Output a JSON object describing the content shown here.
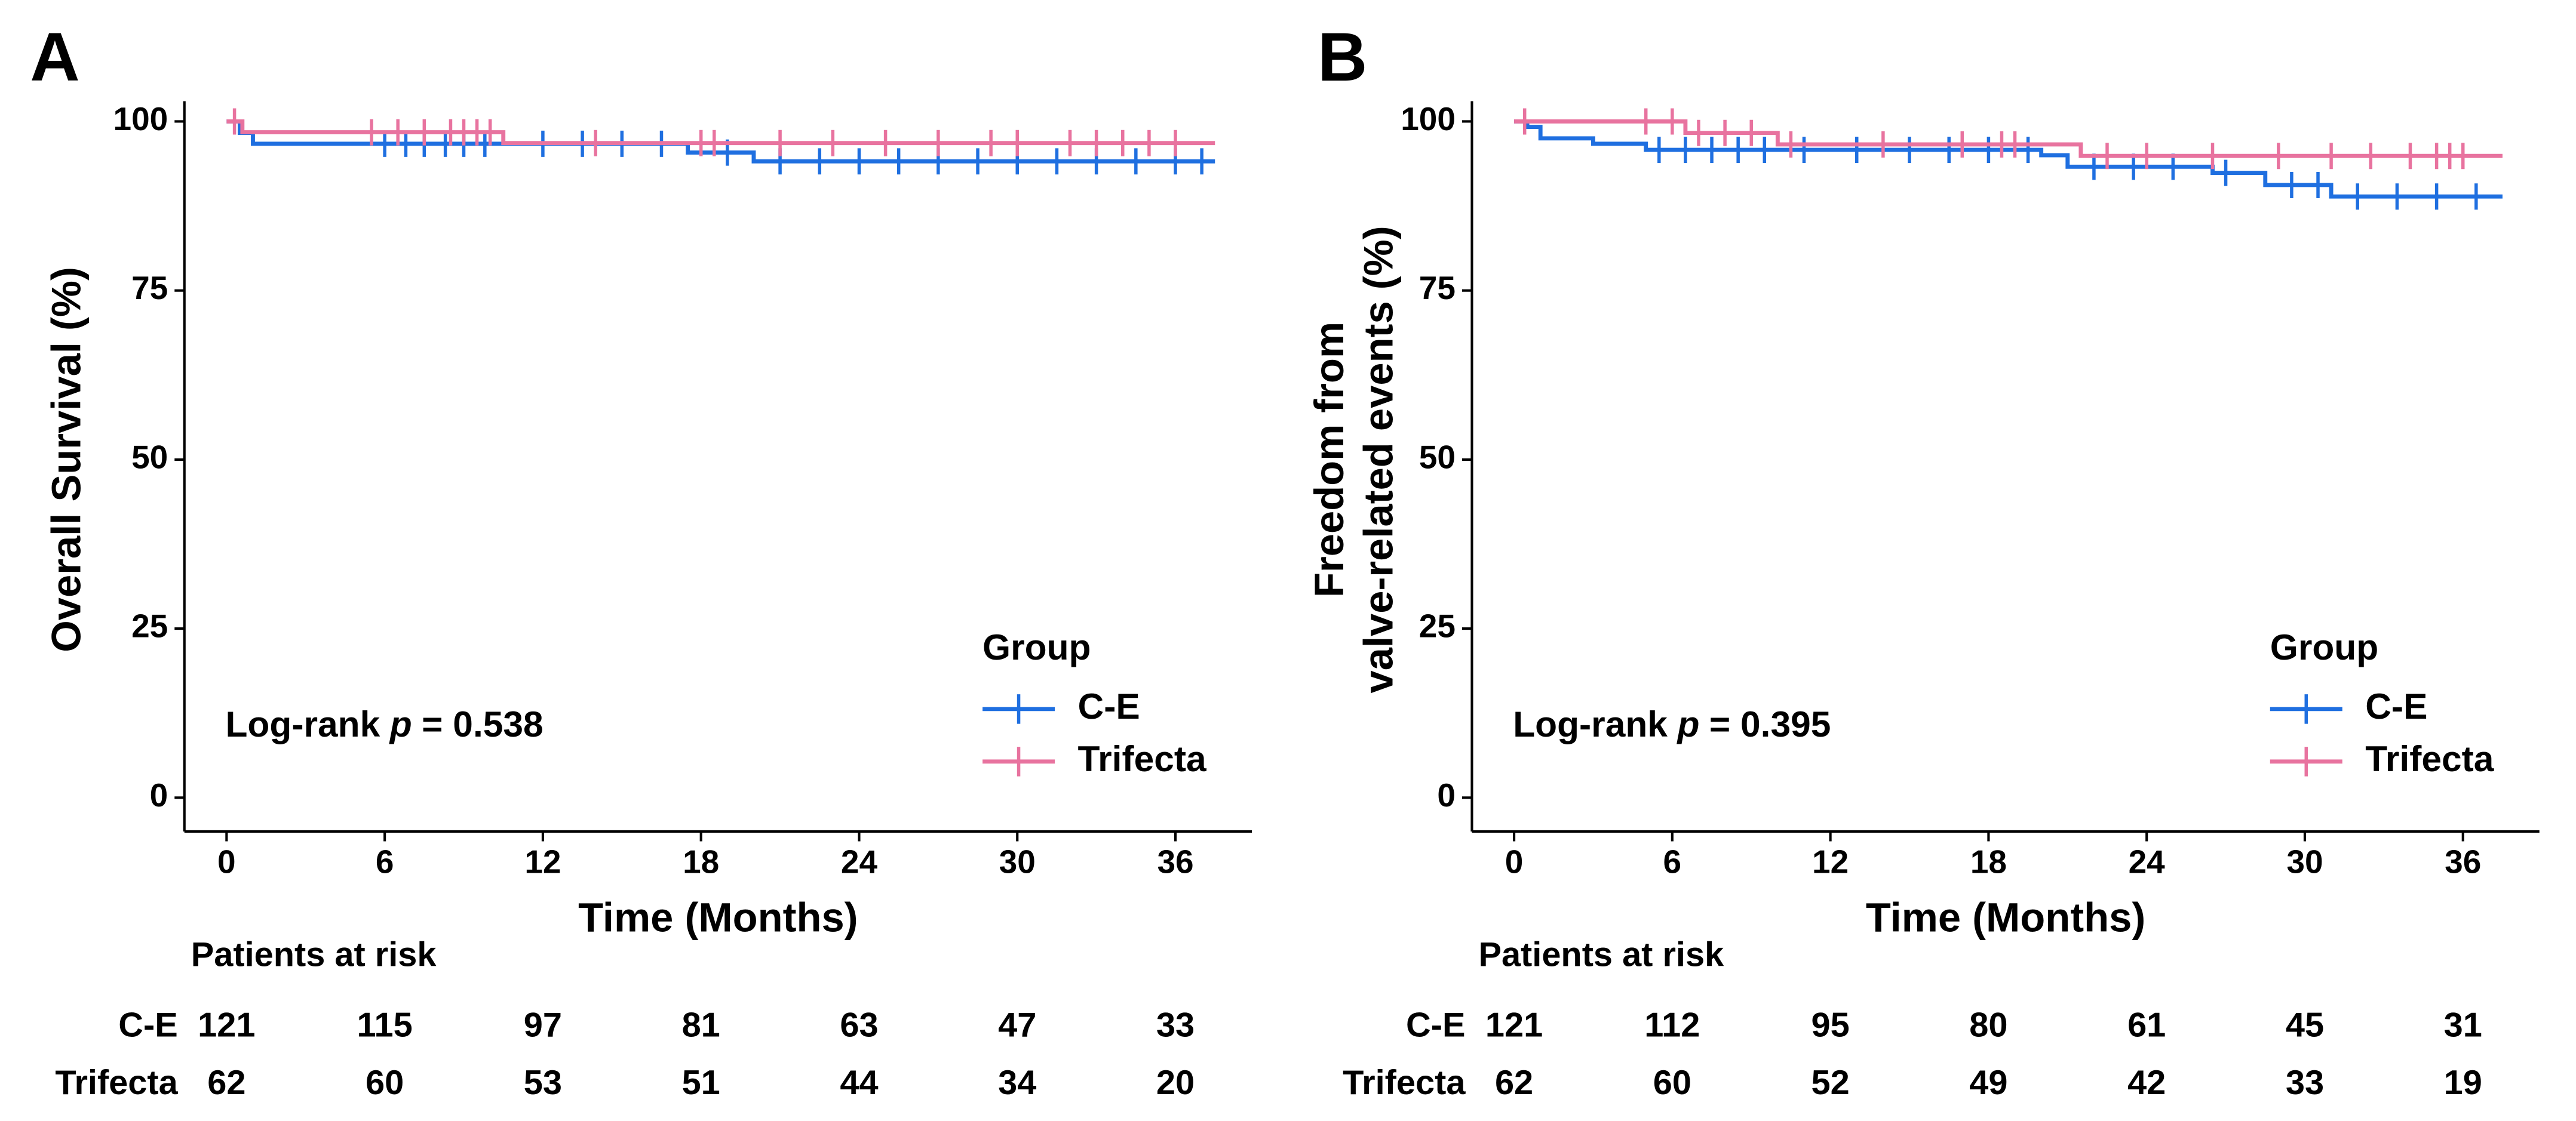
{
  "chart_data": [
    {
      "type": "step",
      "panel": "A",
      "ylabel": [
        "Overall Survival (%)"
      ],
      "xlabel": "Time (Months)",
      "xlim": [
        -1.6,
        38.9
      ],
      "ylim": [
        -5,
        103
      ],
      "xticks": [
        0,
        6,
        12,
        18,
        24,
        30,
        36
      ],
      "yticks": [
        0,
        25,
        50,
        75,
        100
      ],
      "legend_title": "Group",
      "legend": "lower right",
      "annotation": {
        "prefix": "Log-rank",
        "italic": "p",
        "suffix": "= 0.538"
      },
      "series": [
        {
          "name": "C-E",
          "color": "#1f6fe0",
          "x": [
            0,
            0.5,
            1,
            17.5,
            20,
            37.5
          ],
          "values": [
            100,
            98.3,
            96.7,
            95.4,
            94.1,
            94.1
          ],
          "censored": [
            6,
            6.8,
            7.5,
            8.3,
            9,
            9.8,
            12,
            13.5,
            15,
            16.5,
            19,
            21,
            22.5,
            24,
            25.5,
            27,
            28.5,
            30,
            31.5,
            33,
            34.5,
            36,
            37
          ]
        },
        {
          "name": "Trifecta",
          "color": "#e8739f",
          "x": [
            0,
            0.6,
            10.5,
            37.5
          ],
          "values": [
            100,
            98.4,
            96.8,
            96.8
          ],
          "censored": [
            0.3,
            5.5,
            6.5,
            7.5,
            8.5,
            9,
            9.5,
            10,
            14,
            18,
            18.5,
            21,
            23,
            25,
            27,
            29,
            30,
            32,
            33,
            34,
            35,
            36
          ]
        }
      ],
      "risk_table": {
        "title": "Patients at risk",
        "rows": [
          {
            "name": "C-E",
            "values": [
              121,
              115,
              97,
              81,
              63,
              47,
              33
            ]
          },
          {
            "name": "Trifecta",
            "values": [
              62,
              60,
              53,
              51,
              44,
              34,
              20
            ]
          }
        ]
      }
    },
    {
      "type": "step",
      "panel": "B",
      "ylabel": [
        "Freedom from",
        "valve-related events (%)"
      ],
      "xlabel": "Time (Months)",
      "xlim": [
        -1.6,
        38.9
      ],
      "ylim": [
        -5,
        103
      ],
      "xticks": [
        0,
        6,
        12,
        18,
        24,
        30,
        36
      ],
      "yticks": [
        0,
        25,
        50,
        75,
        100
      ],
      "legend_title": "Group",
      "legend": "lower right",
      "annotation": {
        "prefix": "Log-rank",
        "italic": "p",
        "suffix": "= 0.395"
      },
      "series": [
        {
          "name": "C-E",
          "color": "#1f6fe0",
          "x": [
            0,
            0.5,
            1,
            3,
            5,
            20,
            21,
            26.5,
            28.5,
            31,
            37.5
          ],
          "values": [
            100,
            99.2,
            97.5,
            96.7,
            95.8,
            95,
            93.3,
            92.4,
            90.6,
            88.9,
            88.9
          ],
          "censored": [
            5.5,
            6.5,
            7.5,
            8.5,
            9.5,
            11,
            13,
            15,
            16.5,
            18,
            19.5,
            22,
            23.5,
            25,
            27,
            29.5,
            30.5,
            32,
            33.5,
            35,
            36.5
          ]
        },
        {
          "name": "Trifecta",
          "color": "#e8739f",
          "x": [
            0,
            6.5,
            10,
            21.5,
            37.5
          ],
          "values": [
            100,
            98.3,
            96.6,
            94.9,
            94.9
          ],
          "censored": [
            0.4,
            5,
            6,
            7,
            8,
            9,
            10.5,
            14,
            17,
            18.5,
            19,
            22.5,
            24,
            26.5,
            29,
            31,
            32.5,
            34,
            35,
            35.5,
            36
          ]
        }
      ],
      "risk_table": {
        "title": "Patients at risk",
        "rows": [
          {
            "name": "C-E",
            "values": [
              121,
              112,
              95,
              80,
              61,
              45,
              31
            ]
          },
          {
            "name": "Trifecta",
            "values": [
              62,
              60,
              52,
              49,
              42,
              33,
              19
            ]
          }
        ]
      }
    }
  ]
}
